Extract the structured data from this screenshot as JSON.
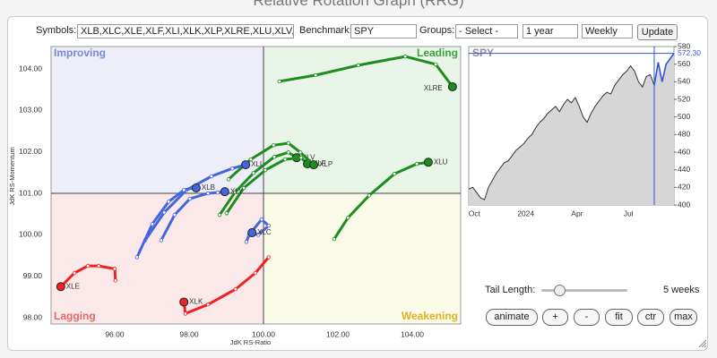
{
  "header": {
    "title": "Relative Rotation Graph (RRG)"
  },
  "controls": {
    "symbols_label": "Symbols:",
    "symbols": "XLB,XLC,XLE,XLF,XLI,XLK,XLP,XLRE,XLU,XLV,XL",
    "benchmark_label": "Benchmark:",
    "benchmark": "SPY",
    "groups_label": "Groups:",
    "groups": "- Select -",
    "period": "1 year",
    "frequency": "Weekly",
    "update": "Update",
    "tail_length_label": "Tail Length:",
    "tail_length": "5 weeks",
    "buttons": [
      "animate",
      "+",
      "-",
      "fit",
      "ctr",
      "max"
    ]
  },
  "chart_data": [
    {
      "type": "rrg",
      "xlabel": "JdK RS-Ratio",
      "ylabel": "JdK RS-Momentum",
      "xlim": [
        94.29,
        105.3
      ],
      "ylim": [
        97.85,
        104.54
      ],
      "xticks": [
        {
          "value": 96,
          "label": "96.00"
        },
        {
          "value": 98,
          "label": "98.00"
        },
        {
          "value": 100,
          "label": "100.00"
        },
        {
          "value": 102,
          "label": "102.00"
        },
        {
          "value": 104,
          "label": "104.00"
        }
      ],
      "yticks": [
        {
          "value": 98,
          "label": "98.00"
        },
        {
          "value": 99,
          "label": "99.00"
        },
        {
          "value": 100,
          "label": "100.00"
        },
        {
          "value": 101,
          "label": "101.00"
        },
        {
          "value": 102,
          "label": "102.00"
        },
        {
          "value": 103,
          "label": "103.00"
        },
        {
          "value": 104,
          "label": "104.00"
        }
      ],
      "quadrants": [
        {
          "name": "Improving",
          "color": "#7a86d8",
          "background": "#eeeef9"
        },
        {
          "name": "Leading",
          "color": "#3aa33a",
          "background": "#e9f5e8"
        },
        {
          "name": "Lagging",
          "color": "#e06a6a",
          "background": "#fbe9e9"
        },
        {
          "name": "Weakening",
          "color": "#e0b020",
          "background": "#fafae8"
        }
      ],
      "series": [
        {
          "name": "XLRE",
          "color": "#1e8c1e",
          "x": [
            100.43,
            101.4,
            102.55,
            103.81,
            104.63,
            105.08
          ],
          "values": [
            103.7,
            103.85,
            104.09,
            104.3,
            104.11,
            103.57
          ]
        },
        {
          "name": "XLU",
          "color": "#1e8c1e",
          "x": [
            101.9,
            102.27,
            102.84,
            103.52,
            104.12,
            104.43
          ],
          "values": [
            99.9,
            100.41,
            100.95,
            101.47,
            101.71,
            101.75
          ]
        },
        {
          "name": "XLV",
          "color": "#1e8c1e",
          "x": [
            98.82,
            99.23,
            99.73,
            100.29,
            100.67,
            100.89
          ],
          "values": [
            100.48,
            101.02,
            101.49,
            101.88,
            101.99,
            101.86
          ]
        },
        {
          "name": "XLF",
          "color": "#1e8c1e",
          "x": [
            99.01,
            99.47,
            100.05,
            100.58,
            101.01,
            101.18
          ],
          "values": [
            100.52,
            101.13,
            101.56,
            101.82,
            101.86,
            101.71
          ]
        },
        {
          "name": "XLP",
          "color": "#1e8c1e",
          "x": [
            99.06,
            99.66,
            100.27,
            100.67,
            100.99,
            101.35
          ],
          "values": [
            101.34,
            101.82,
            102.16,
            102.21,
            101.99,
            101.69
          ]
        },
        {
          "name": "XLI",
          "color": "#4466dd",
          "x": [
            96.82,
            97.33,
            97.93,
            98.6,
            99.16,
            99.52
          ],
          "values": [
            99.87,
            100.54,
            101.08,
            101.41,
            101.6,
            101.69
          ]
        },
        {
          "name": "XLB",
          "color": "#4466dd",
          "x": [
            96.6,
            97.01,
            97.45,
            97.86,
            98.1,
            98.19
          ],
          "values": [
            99.46,
            100.26,
            100.8,
            101.08,
            101.13,
            101.13
          ]
        },
        {
          "name": "XLY",
          "color": "#4466dd",
          "x": [
            97.25,
            97.61,
            98.02,
            98.51,
            98.77,
            98.96
          ],
          "values": [
            99.87,
            100.48,
            100.87,
            101.0,
            101.02,
            101.04
          ]
        },
        {
          "name": "XLC",
          "color": "#4466dd",
          "x": [
            99.54,
            99.61,
            99.95,
            100.14,
            99.86,
            99.69
          ],
          "values": [
            99.83,
            100.0,
            100.37,
            100.22,
            100.0,
            100.05
          ]
        },
        {
          "name": "XLE",
          "color": "#ee2222",
          "x": [
            96.02,
            96.0,
            95.57,
            95.28,
            94.92,
            94.55
          ],
          "values": [
            98.9,
            99.18,
            99.25,
            99.25,
            99.08,
            98.75
          ]
        },
        {
          "name": "XLK",
          "color": "#ee2222",
          "x": [
            100.14,
            99.78,
            99.25,
            98.51,
            97.9,
            97.86
          ],
          "values": [
            99.46,
            99.08,
            98.69,
            98.32,
            98.1,
            98.38
          ]
        }
      ]
    },
    {
      "type": "line",
      "title": "SPY",
      "categories": [
        null,
        "Oct",
        null,
        null,
        null,
        null,
        null,
        null,
        null,
        null,
        null,
        null,
        null,
        null,
        "2024",
        null,
        null,
        null,
        null,
        null,
        null,
        null,
        null,
        null,
        null,
        null,
        null,
        "Apr",
        null,
        null,
        null,
        null,
        null,
        null,
        null,
        null,
        null,
        null,
        null,
        null,
        "Jul",
        null,
        null,
        null,
        null,
        null,
        null,
        null,
        null,
        null,
        null,
        null,
        null
      ],
      "series": [
        {
          "name": "SPY",
          "color": "#333333",
          "fill": "#d6d6d6",
          "highlight_color": "#3355dd",
          "values": [
            418,
            420,
            414,
            408,
            406,
            420,
            428,
            436,
            442,
            448,
            450,
            456,
            462,
            466,
            470,
            476,
            480,
            488,
            494,
            498,
            504,
            508,
            512,
            506,
            514,
            520,
            516,
            522,
            512,
            500,
            494,
            504,
            512,
            518,
            524,
            528,
            526,
            536,
            542,
            548,
            552,
            558,
            552,
            540,
            534,
            546,
            548,
            536,
            562,
            540,
            560,
            566,
            572.3
          ]
        }
      ],
      "current_label": "572.30",
      "ylim": [
        400,
        580
      ],
      "yticks": [
        400,
        420,
        440,
        460,
        480,
        500,
        520,
        540,
        560,
        580
      ]
    }
  ]
}
